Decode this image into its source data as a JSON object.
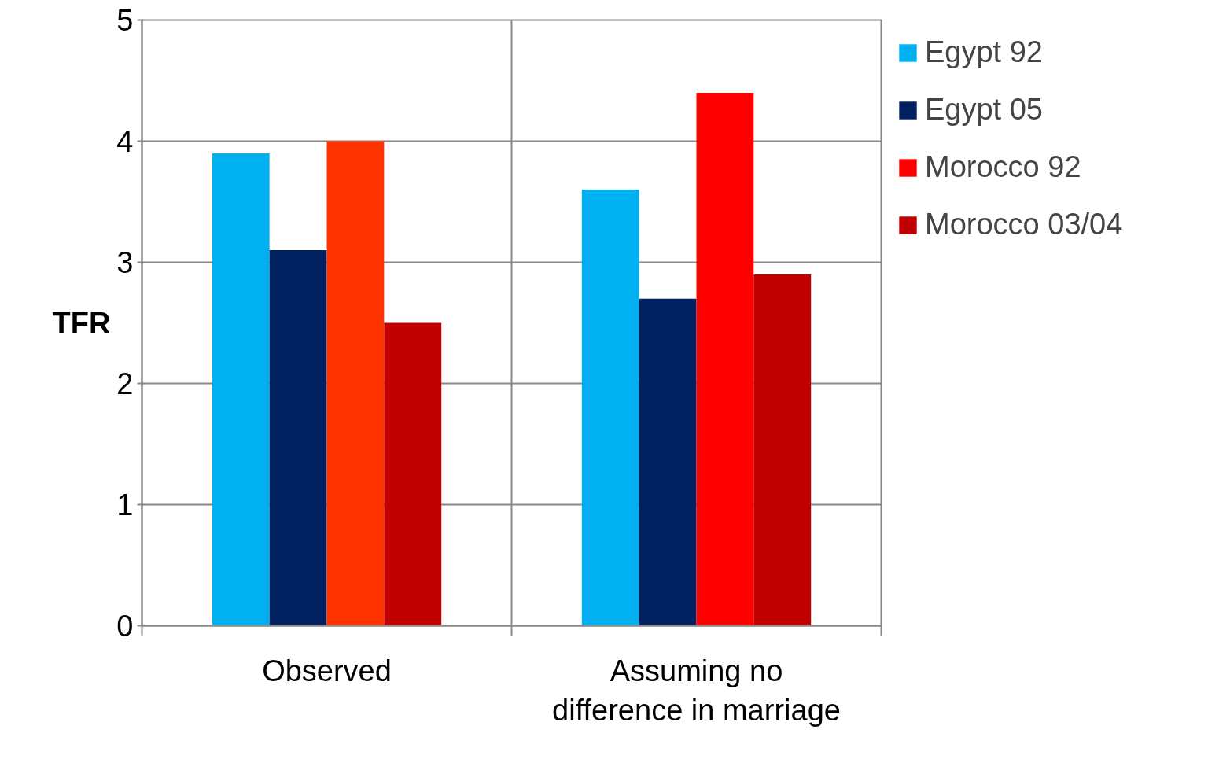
{
  "chart_data": {
    "type": "bar",
    "ylabel": "TFR",
    "categories": [
      "Observed",
      "Assuming no difference in marriage"
    ],
    "series": [
      {
        "name": "Egypt 92",
        "color": "#00b0f0",
        "values": [
          3.9,
          3.6
        ]
      },
      {
        "name": "Egypt 05",
        "color": "#002060",
        "values": [
          3.1,
          2.7
        ]
      },
      {
        "name": "Morocco 92",
        "colors": [
          "#ff3300",
          "#ff0000"
        ],
        "values": [
          4.0,
          4.4
        ]
      },
      {
        "name": "Morocco 03/04",
        "color": "#c00000",
        "values": [
          2.5,
          2.9
        ]
      }
    ],
    "ylim": [
      0,
      5
    ],
    "yticks": [
      0,
      1,
      2,
      3,
      4,
      5
    ],
    "grid": true,
    "legend": "right"
  }
}
